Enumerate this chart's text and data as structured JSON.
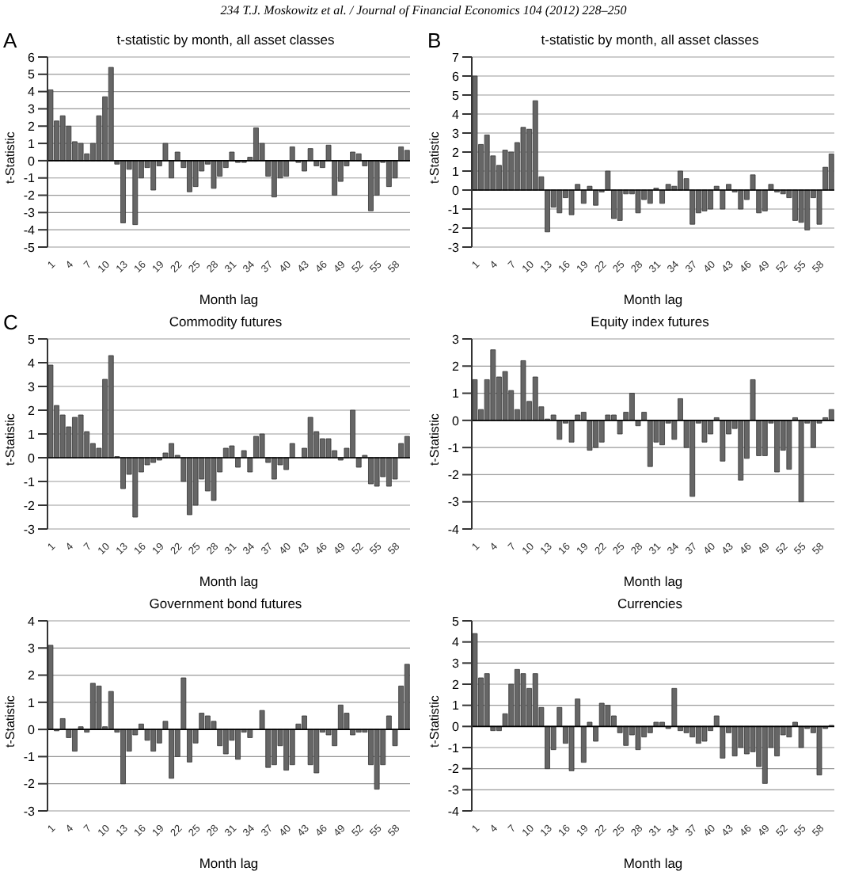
{
  "chart_data": [
    {
      "type": "bar",
      "title": "t-statistic by month, all asset classes",
      "xlabel": "Month lag",
      "ylabel": "t-Statistic",
      "annotations": [
        "234 T.J. Moskowitz et al. / Journal of Financial Economics 104 (2012) 228–250",
        "A"
      ],
      "color": "#666666",
      "grid": "y",
      "ylim": [
        -5,
        6
      ],
      "yticks": [
        -5,
        -4,
        -3,
        -2,
        -1,
        0,
        1,
        2,
        3,
        4,
        5,
        6
      ],
      "categories": [
        "1",
        null,
        null,
        "4",
        null,
        null,
        "7",
        null,
        null,
        "10",
        null,
        null,
        "13",
        null,
        null,
        "16",
        null,
        null,
        "19",
        null,
        null,
        "22",
        null,
        null,
        "25",
        null,
        null,
        "28",
        null,
        null,
        "31",
        null,
        null,
        "34",
        null,
        null,
        "37",
        null,
        null,
        "40",
        null,
        null,
        "43",
        null,
        null,
        "46",
        null,
        null,
        "49",
        null,
        null,
        "52",
        null,
        null,
        "55",
        null,
        null,
        "58",
        null,
        null
      ],
      "values": [
        4.1,
        2.3,
        2.6,
        2.0,
        1.1,
        1.0,
        0.4,
        1.0,
        2.6,
        3.7,
        5.4,
        -0.2,
        -3.6,
        -0.5,
        -3.7,
        -1.0,
        -0.4,
        -1.7,
        -0.3,
        1.0,
        -1.0,
        0.5,
        -0.4,
        -1.8,
        -1.5,
        -0.6,
        -0.2,
        -1.6,
        -0.9,
        -0.4,
        0.5,
        -0.1,
        -0.1,
        0.2,
        1.9,
        1.0,
        -0.9,
        -2.1,
        -1.0,
        -0.9,
        0.8,
        -0.1,
        -0.6,
        0.7,
        -0.3,
        -0.4,
        0.9,
        -2.0,
        -1.2,
        -0.3,
        0.5,
        0.4,
        -0.3,
        -2.9,
        -2.0,
        -0.1,
        -1.5,
        -1.0,
        0.8,
        0.6
      ]
    },
    {
      "type": "bar",
      "title": "t-statistic by month, all asset classes",
      "xlabel": "Month lag",
      "ylabel": "t-Statistic",
      "annotations": [
        "B"
      ],
      "color": "#666666",
      "grid": "y",
      "ylim": [
        -3,
        7
      ],
      "yticks": [
        -3,
        -2,
        -1,
        0,
        1,
        2,
        3,
        4,
        5,
        6,
        7
      ],
      "categories": [
        "1",
        null,
        null,
        "4",
        null,
        null,
        "7",
        null,
        null,
        "10",
        null,
        null,
        "13",
        null,
        null,
        "16",
        null,
        null,
        "19",
        null,
        null,
        "22",
        null,
        null,
        "25",
        null,
        null,
        "28",
        null,
        null,
        "31",
        null,
        null,
        "34",
        null,
        null,
        "37",
        null,
        null,
        "40",
        null,
        null,
        "43",
        null,
        null,
        "46",
        null,
        null,
        "49",
        null,
        null,
        "52",
        null,
        null,
        "55",
        null,
        null,
        "58",
        null,
        null
      ],
      "values": [
        6.0,
        2.4,
        2.9,
        1.8,
        1.3,
        2.1,
        2.0,
        2.5,
        3.3,
        3.2,
        4.7,
        0.7,
        -2.2,
        -0.9,
        -1.2,
        -0.4,
        -1.3,
        0.3,
        -0.7,
        0.2,
        -0.8,
        -0.1,
        1.0,
        -1.5,
        -1.6,
        -0.2,
        -0.2,
        -1.2,
        -0.5,
        -0.7,
        0.1,
        -0.7,
        0.3,
        0.2,
        1.0,
        0.6,
        -1.8,
        -1.2,
        -1.1,
        -1.0,
        0.2,
        -1.0,
        0.3,
        -0.1,
        -1.0,
        -0.5,
        0.8,
        -1.2,
        -1.1,
        0.3,
        -0.1,
        -0.2,
        -0.4,
        -1.6,
        -1.7,
        -2.1,
        -0.4,
        -1.8,
        1.2,
        1.9
      ]
    },
    {
      "type": "bar",
      "title": "Commodity futures",
      "xlabel": "Month lag",
      "ylabel": "t-Statistic",
      "annotations": [
        "C"
      ],
      "color": "#666666",
      "grid": "y",
      "ylim": [
        -3,
        5
      ],
      "yticks": [
        -3,
        -2,
        -1,
        0,
        1,
        2,
        3,
        4,
        5
      ],
      "categories": [
        "1",
        null,
        null,
        "4",
        null,
        null,
        "7",
        null,
        null,
        "10",
        null,
        null,
        "13",
        null,
        null,
        "16",
        null,
        null,
        "19",
        null,
        null,
        "22",
        null,
        null,
        "25",
        null,
        null,
        "28",
        null,
        null,
        "31",
        null,
        null,
        "34",
        null,
        null,
        "37",
        null,
        null,
        "40",
        null,
        null,
        "43",
        null,
        null,
        "46",
        null,
        null,
        "49",
        null,
        null,
        "52",
        null,
        null,
        "55",
        null,
        null,
        "58",
        null,
        null
      ],
      "values": [
        3.9,
        2.2,
        1.8,
        1.3,
        1.7,
        1.8,
        1.1,
        0.6,
        0.4,
        3.3,
        4.3,
        0.05,
        -1.3,
        -0.7,
        -2.5,
        -0.6,
        -0.3,
        -0.2,
        -0.1,
        0.2,
        0.6,
        0.1,
        -1.0,
        -2.4,
        -2.0,
        -0.9,
        -1.4,
        -1.8,
        -0.6,
        0.4,
        0.5,
        -0.4,
        0.3,
        -0.6,
        0.9,
        1.0,
        -0.2,
        -0.9,
        -0.3,
        -0.5,
        0.6,
        0.0,
        0.4,
        1.7,
        1.1,
        0.8,
        0.8,
        0.3,
        -0.1,
        0.4,
        2.0,
        -0.4,
        0.1,
        -1.1,
        -1.2,
        -0.8,
        -1.2,
        -0.9,
        0.6,
        0.9
      ]
    },
    {
      "type": "bar",
      "title": "Equity index futures",
      "xlabel": "Month lag",
      "ylabel": "t-Statistic",
      "color": "#666666",
      "grid": "y",
      "ylim": [
        -4,
        3
      ],
      "yticks": [
        -4,
        -3,
        -2,
        -1,
        0,
        1,
        2,
        3
      ],
      "categories": [
        "1",
        null,
        null,
        "4",
        null,
        null,
        "7",
        null,
        null,
        "10",
        null,
        null,
        "13",
        null,
        null,
        "16",
        null,
        null,
        "19",
        null,
        null,
        "22",
        null,
        null,
        "25",
        null,
        null,
        "28",
        null,
        null,
        "31",
        null,
        null,
        "34",
        null,
        null,
        "37",
        null,
        null,
        "40",
        null,
        null,
        "43",
        null,
        null,
        "46",
        null,
        null,
        "49",
        null,
        null,
        "52",
        null,
        null,
        "55",
        null,
        null,
        "58",
        null,
        null
      ],
      "values": [
        1.5,
        0.4,
        1.5,
        2.6,
        1.6,
        1.8,
        1.1,
        0.4,
        2.2,
        0.7,
        1.6,
        0.5,
        0.05,
        0.2,
        -0.7,
        -0.1,
        -0.8,
        0.2,
        0.3,
        -1.1,
        -1.0,
        -0.8,
        0.2,
        0.2,
        -0.5,
        0.3,
        1.0,
        -0.2,
        0.3,
        -1.7,
        -0.8,
        -0.9,
        -0.1,
        -0.7,
        0.8,
        -1.0,
        -2.8,
        -0.1,
        -0.8,
        -0.5,
        0.1,
        -1.5,
        -0.5,
        -0.3,
        -2.2,
        -1.4,
        1.5,
        -1.3,
        -1.3,
        -0.1,
        -1.9,
        -1.1,
        -1.8,
        0.1,
        -3.0,
        -0.1,
        -1.0,
        -0.1,
        0.1,
        0.4
      ]
    },
    {
      "type": "bar",
      "title": "Government bond futures",
      "xlabel": "Month lag",
      "ylabel": "t-Statistic",
      "color": "#666666",
      "grid": "y",
      "ylim": [
        -3,
        4
      ],
      "yticks": [
        -3,
        -2,
        -1,
        0,
        1,
        2,
        3,
        4
      ],
      "categories": [
        "1",
        null,
        null,
        "4",
        null,
        null,
        "7",
        null,
        null,
        "10",
        null,
        null,
        "13",
        null,
        null,
        "16",
        null,
        null,
        "19",
        null,
        null,
        "22",
        null,
        null,
        "25",
        null,
        null,
        "28",
        null,
        null,
        "31",
        null,
        null,
        "34",
        null,
        null,
        "37",
        null,
        null,
        "40",
        null,
        null,
        "43",
        null,
        null,
        "46",
        null,
        null,
        "49",
        null,
        null,
        "52",
        null,
        null,
        "55",
        null,
        null,
        "58",
        null,
        null
      ],
      "values": [
        3.1,
        -0.05,
        0.4,
        -0.3,
        -0.8,
        0.1,
        -0.1,
        1.7,
        1.6,
        0.1,
        1.4,
        -0.1,
        -2.0,
        -0.8,
        -0.2,
        0.2,
        -0.4,
        -0.8,
        -0.5,
        0.3,
        -1.8,
        -1.0,
        1.9,
        -1.2,
        -0.5,
        0.6,
        0.5,
        0.3,
        -0.6,
        -0.9,
        -0.4,
        -1.1,
        -0.1,
        -0.3,
        0.0,
        0.7,
        -1.4,
        -1.3,
        -0.6,
        -1.5,
        -1.3,
        0.2,
        0.5,
        -1.3,
        -1.6,
        -0.1,
        -0.2,
        -0.6,
        0.9,
        0.6,
        -0.2,
        -0.1,
        -0.1,
        -1.3,
        -2.2,
        -1.3,
        0.5,
        -0.6,
        1.6,
        2.4
      ]
    },
    {
      "type": "bar",
      "title": "Currencies",
      "xlabel": "Month lag",
      "ylabel": "t-Statistic",
      "color": "#666666",
      "grid": "y",
      "ylim": [
        -4,
        5
      ],
      "yticks": [
        -4,
        -3,
        -2,
        -1,
        0,
        1,
        2,
        3,
        4,
        5
      ],
      "categories": [
        "1",
        null,
        null,
        "4",
        null,
        null,
        "7",
        null,
        null,
        "10",
        null,
        null,
        "13",
        null,
        null,
        "16",
        null,
        null,
        "19",
        null,
        null,
        "22",
        null,
        null,
        "25",
        null,
        null,
        "28",
        null,
        null,
        "31",
        null,
        null,
        "34",
        null,
        null,
        "37",
        null,
        null,
        "40",
        null,
        null,
        "43",
        null,
        null,
        "46",
        null,
        null,
        "49",
        null,
        null,
        "52",
        null,
        null,
        "55",
        null,
        null,
        "58",
        null,
        null
      ],
      "values": [
        4.4,
        2.3,
        2.5,
        -0.2,
        -0.2,
        0.6,
        2.0,
        2.7,
        2.5,
        1.8,
        2.5,
        0.9,
        -2.0,
        -1.1,
        0.9,
        -0.8,
        -2.1,
        1.3,
        -1.7,
        0.2,
        -0.7,
        1.1,
        1.0,
        0.5,
        -0.3,
        -0.9,
        -0.4,
        -1.1,
        -0.5,
        -0.3,
        0.2,
        0.2,
        -0.1,
        1.8,
        -0.2,
        -0.3,
        -0.5,
        -0.8,
        -0.7,
        -0.2,
        0.5,
        -1.5,
        -0.3,
        -1.4,
        -1.0,
        -1.3,
        -1.2,
        -1.9,
        -2.7,
        -1.0,
        -1.4,
        -0.4,
        -0.5,
        0.2,
        -1.0,
        -0.1,
        -0.3,
        -2.3,
        -0.1,
        0.05
      ]
    }
  ]
}
